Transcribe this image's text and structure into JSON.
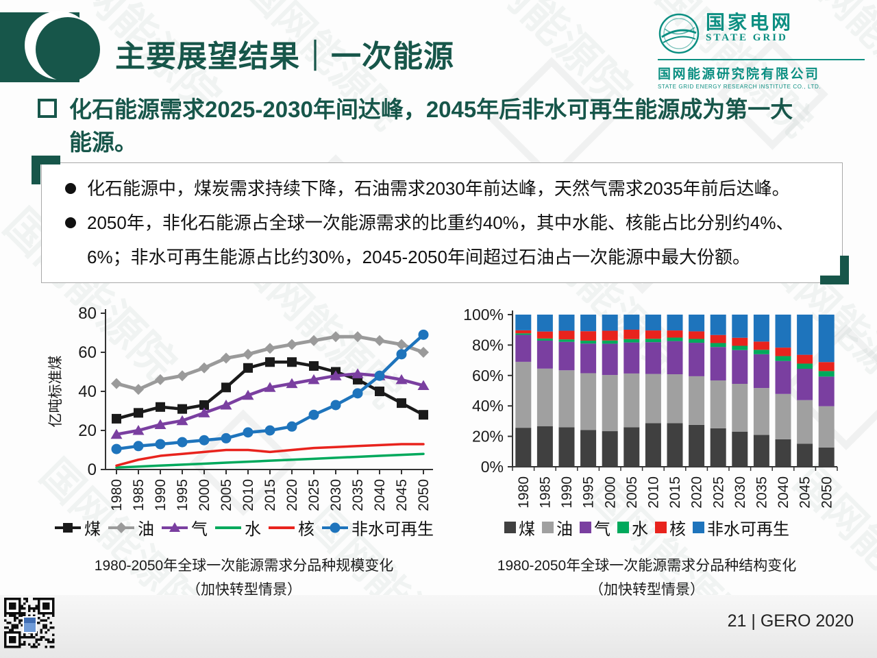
{
  "slide": {
    "title": "主要展望结果｜一次能源",
    "page_footer": "21 | GERO 2020"
  },
  "logo": {
    "name_cn": "国家电网",
    "name_en": "STATE GRID",
    "org_cn": "国网能源研究院有限公司",
    "org_en": "STATE GRID ENERGY RESEARCH INSTITUTE CO., LTD."
  },
  "heading": {
    "text": "化石能源需求2025-2030年间达峰，2045年后非水可再生能源成为第一大能源。"
  },
  "bullets": [
    {
      "text": "化石能源中，煤炭需求持续下降，石油需求2030年前达峰，天然气需求2035年前后达峰。"
    },
    {
      "text": "2050年，非化石能源占全球一次能源需求的比重约40%，其中水能、核能占比分别约4%、6%；非水可再生能源占比约30%，2045-2050年间超过石油占一次能源中最大份额。"
    }
  ],
  "colors": {
    "brand_green": "#17564a",
    "logo_teal": "#0c8f82",
    "coal": "#1a1a1a",
    "coal_bar": "#404040",
    "oil": "#9a9a9a",
    "gas": "#7a3fa0",
    "hydro": "#00a95c",
    "nuclear": "#e8231d",
    "renewable": "#1e74bc"
  },
  "watermark": {
    "text": "国网能源院"
  },
  "chart_data": [
    {
      "type": "line",
      "caption": "1980-2050年全球一次能源需求分品种规模变化",
      "caption_sub": "（加快转型情景）",
      "ylabel": "亿吨标准煤",
      "ylim": [
        0,
        80
      ],
      "yticks": [
        0,
        20,
        40,
        60,
        80
      ],
      "x": [
        "1980",
        "1985",
        "1990",
        "1995",
        "2000",
        "2005",
        "2010",
        "2015",
        "2020",
        "2025",
        "2030",
        "2035",
        "2040",
        "2045",
        "2050"
      ],
      "legend_position": "bottom",
      "grid": false,
      "series": [
        {
          "key": "coal",
          "name": "煤",
          "color": "#1a1a1a",
          "marker": "square",
          "values": [
            26,
            29,
            32,
            31,
            33,
            42,
            52,
            55,
            55,
            53,
            50,
            46,
            40,
            34,
            28
          ]
        },
        {
          "key": "oil",
          "name": "油",
          "color": "#9a9a9a",
          "marker": "diamond",
          "values": [
            44,
            41,
            46,
            48,
            52,
            57,
            59,
            62,
            64,
            66,
            68,
            68,
            66,
            64,
            60
          ]
        },
        {
          "key": "gas",
          "name": "气",
          "color": "#7a3fa0",
          "marker": "triangle",
          "values": [
            18,
            20,
            23,
            25,
            29,
            33,
            38,
            42,
            44,
            46,
            48,
            49,
            48,
            46,
            43
          ]
        },
        {
          "key": "hydro",
          "name": "水",
          "color": "#00a95c",
          "marker": "none",
          "values": [
            1,
            1.5,
            2,
            2.5,
            3,
            3.5,
            4,
            4.5,
            5,
            5.5,
            6,
            6.5,
            7,
            7.5,
            8
          ]
        },
        {
          "key": "nuclear",
          "name": "核",
          "color": "#e8231d",
          "marker": "none",
          "values": [
            2,
            5,
            7,
            8,
            9,
            10,
            10,
            9,
            10,
            11,
            11.5,
            12,
            12.5,
            13,
            13
          ]
        },
        {
          "key": "renewable",
          "name": "非水可再生",
          "color": "#1e74bc",
          "marker": "circle",
          "values": [
            10.5,
            12,
            13,
            14,
            15,
            16,
            19,
            20,
            22,
            28,
            33,
            39,
            48,
            59,
            69
          ]
        }
      ]
    },
    {
      "type": "stacked-bar-100",
      "caption": "1980-2050年全球一次能源需求分品种结构变化",
      "caption_sub": "（加快转型情景）",
      "yticks_percent": [
        0,
        20,
        40,
        60,
        80,
        100
      ],
      "categories": [
        "1980",
        "1985",
        "1990",
        "1995",
        "2000",
        "2005",
        "2010",
        "2015",
        "2020",
        "2025",
        "2030",
        "2035",
        "2040",
        "2045",
        "2050"
      ],
      "legend_position": "bottom",
      "series": [
        {
          "key": "coal",
          "name": "煤",
          "color": "#404040",
          "values": [
            25.6,
            26.7,
            26.0,
            24.1,
            23.4,
            26.0,
            28.6,
            28.6,
            27.5,
            25.3,
            23.1,
            20.9,
            18.1,
            15.2,
            12.7
          ]
        },
        {
          "key": "oil",
          "name": "油",
          "color": "#a0a0a0",
          "values": [
            43.3,
            37.8,
            37.4,
            37.4,
            36.9,
            35.3,
            32.4,
            32.2,
            32.0,
            31.5,
            31.4,
            30.8,
            29.8,
            28.6,
            27.1
          ]
        },
        {
          "key": "gas",
          "name": "气",
          "color": "#7a3fa0",
          "values": [
            17.7,
            18.4,
            18.7,
            19.5,
            20.6,
            20.4,
            20.9,
            21.8,
            22.0,
            22.0,
            22.2,
            22.2,
            21.7,
            20.6,
            19.5
          ]
        },
        {
          "key": "hydro",
          "name": "水",
          "color": "#00a95c",
          "values": [
            1.0,
            1.4,
            1.6,
            1.9,
            2.1,
            2.2,
            2.2,
            2.3,
            2.5,
            2.6,
            2.8,
            2.9,
            3.2,
            3.4,
            3.6
          ]
        },
        {
          "key": "nuclear",
          "name": "核",
          "color": "#e8231d",
          "values": [
            2.0,
            4.6,
            5.7,
            6.2,
            6.4,
            6.2,
            5.5,
            4.7,
            5.0,
            5.3,
            5.3,
            5.4,
            5.6,
            5.8,
            5.9
          ]
        },
        {
          "key": "renewable",
          "name": "非水可再生",
          "color": "#1e74bc",
          "values": [
            10.3,
            11.1,
            10.6,
            10.9,
            10.6,
            9.9,
            10.4,
            10.4,
            11.0,
            13.4,
            15.2,
            17.7,
            21.7,
            26.4,
            31.2
          ]
        }
      ]
    }
  ]
}
